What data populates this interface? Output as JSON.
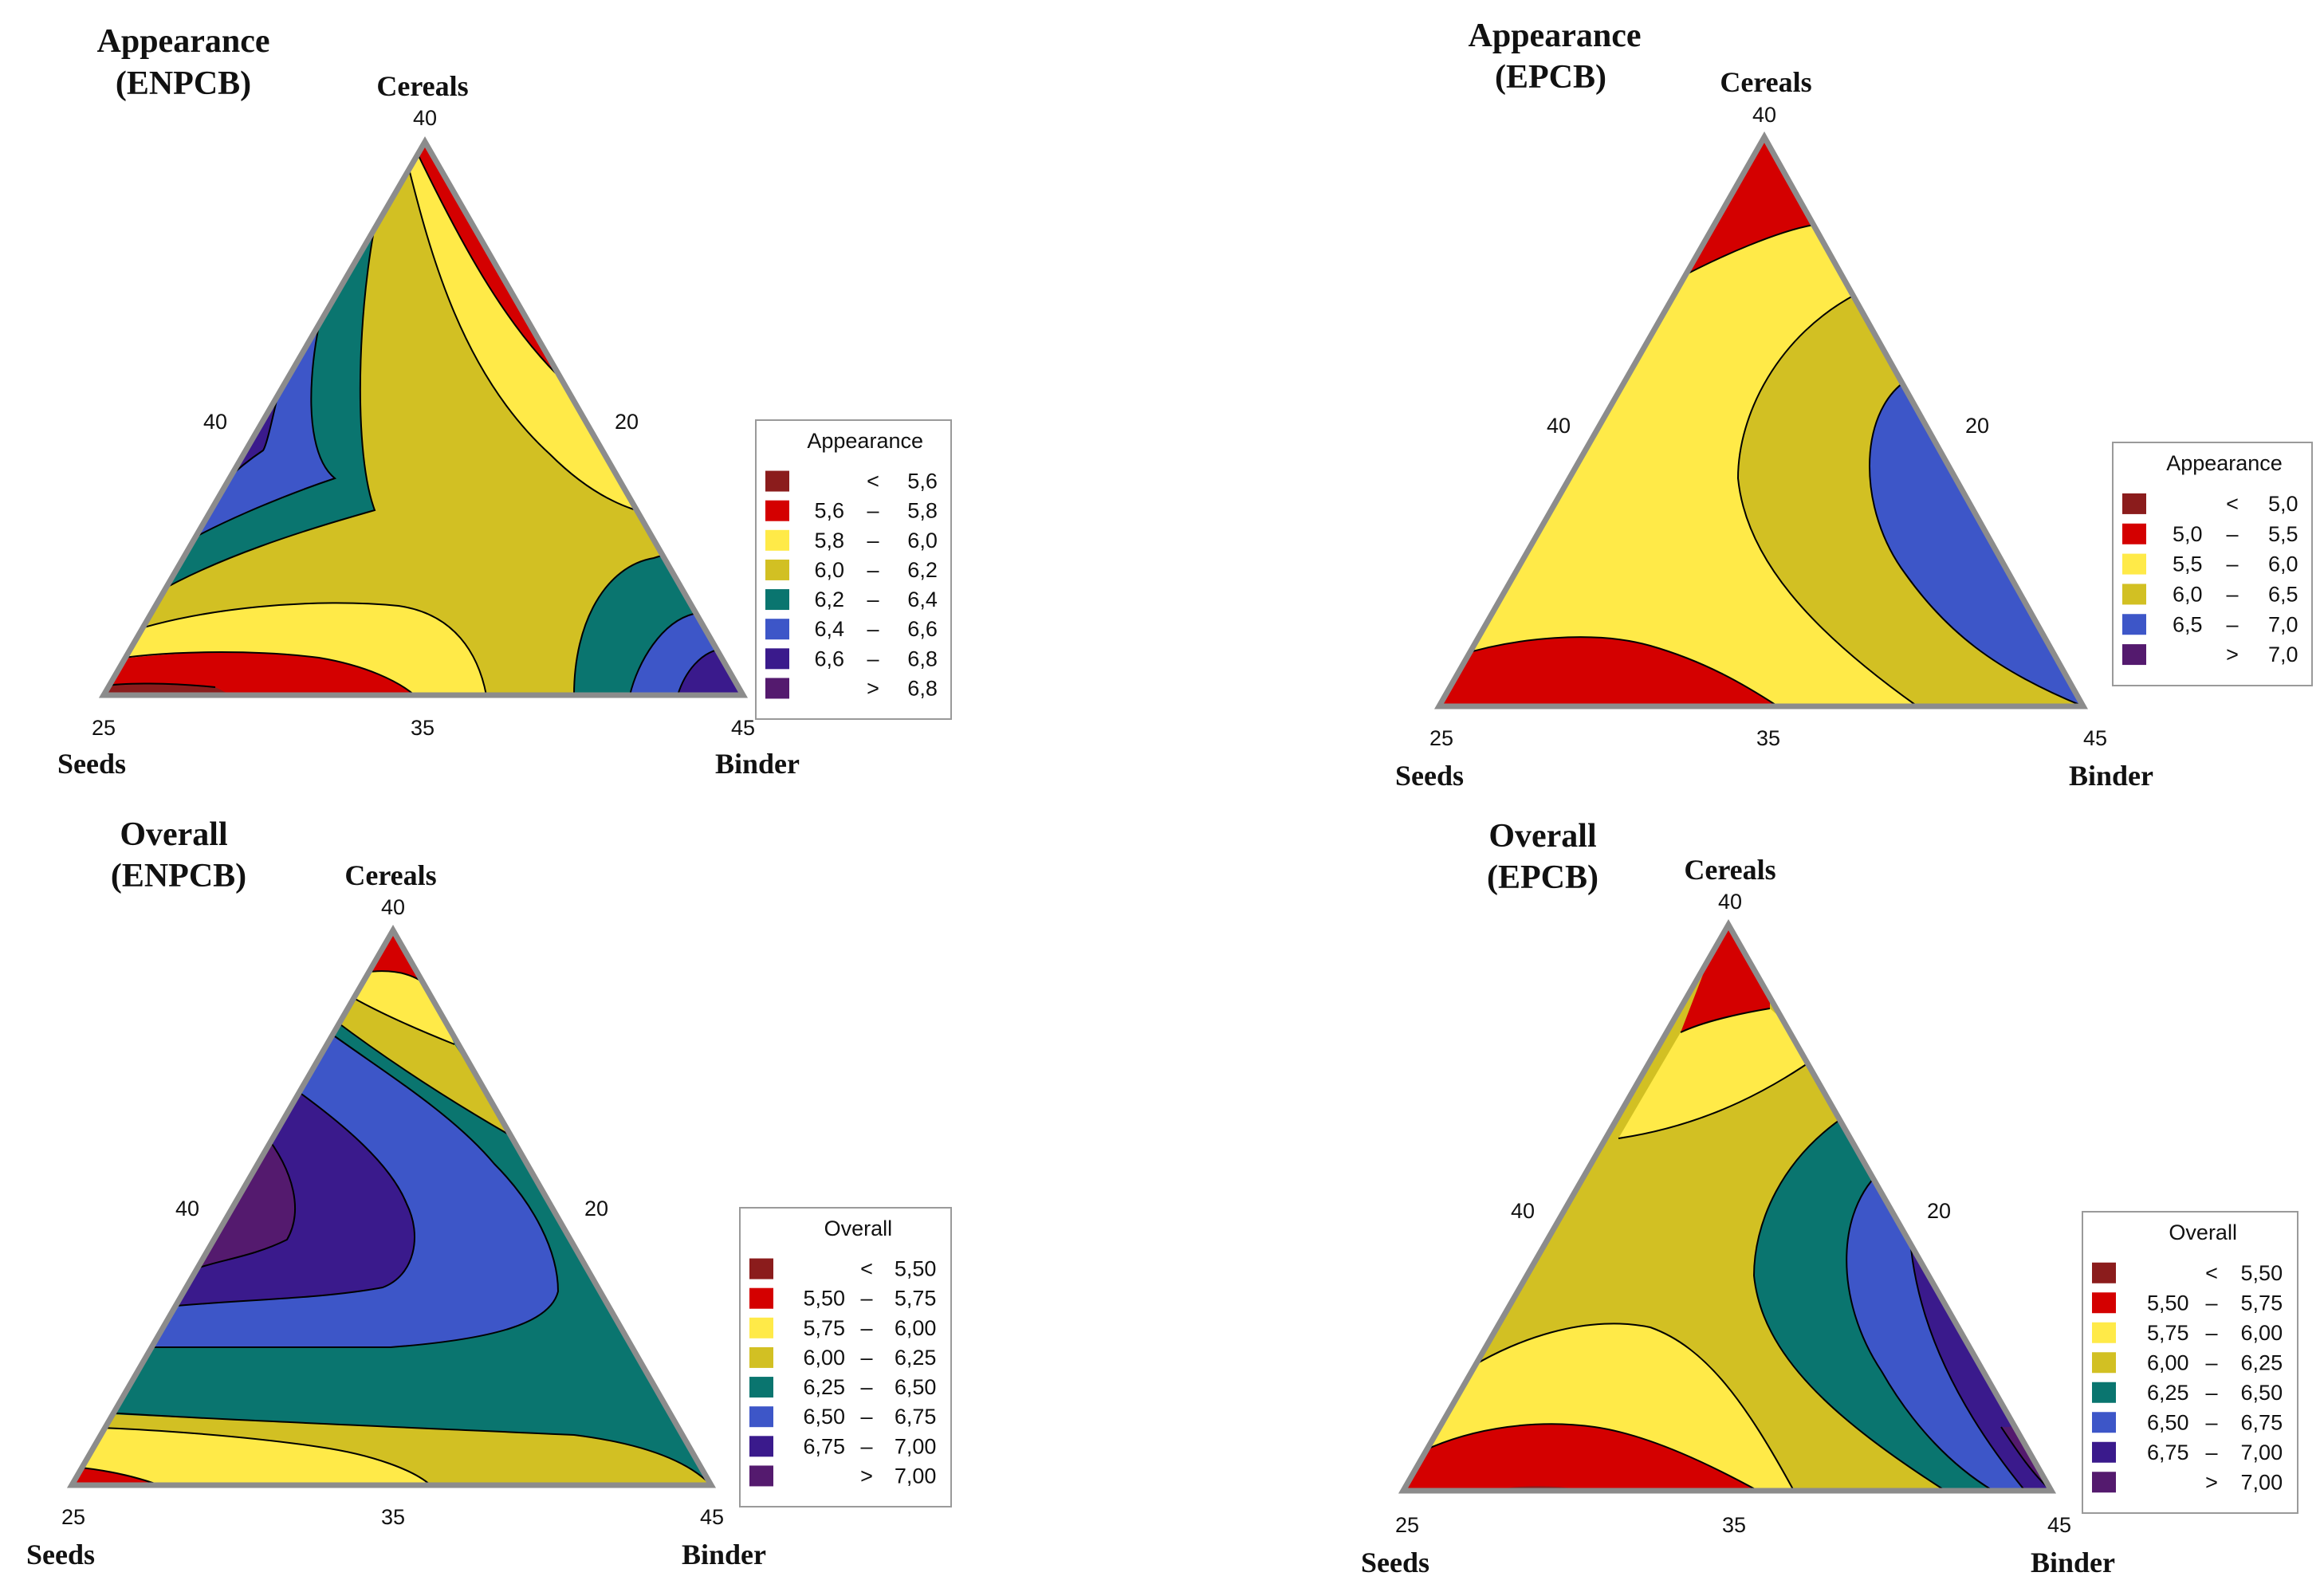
{
  "colors": {
    "dark_red": "#8b1c1c",
    "red": "#d40000",
    "yellow": "#ffea48",
    "olive": "#d2c023",
    "teal": "#0a756f",
    "blue": "#3d56c8",
    "indigo": "#3a1a8c",
    "purple": "#541a6e",
    "border_gray": "#8c8c8c"
  },
  "chart_data": [
    {
      "type": "ternary-contour",
      "title_lines": [
        "Appearance",
        "(ENPCB)"
      ],
      "vertices": {
        "top": "Cereals",
        "left": "Seeds",
        "right": "Binder"
      },
      "ticks": {
        "top": "40",
        "left_edge": "40",
        "right_edge": "20",
        "bottom_left": "25",
        "bottom_mid": "35",
        "bottom_right": "45"
      },
      "legend": {
        "title": "Appearance",
        "placement": "right",
        "entries": [
          {
            "op": "<",
            "low": "",
            "high": "5,6",
            "color": "dark_red"
          },
          {
            "op": "–",
            "low": "5,6",
            "high": "5,8",
            "color": "red"
          },
          {
            "op": "–",
            "low": "5,8",
            "high": "6,0",
            "color": "yellow"
          },
          {
            "op": "–",
            "low": "6,0",
            "high": "6,2",
            "color": "olive"
          },
          {
            "op": "–",
            "low": "6,2",
            "high": "6,4",
            "color": "teal"
          },
          {
            "op": "–",
            "low": "6,4",
            "high": "6,6",
            "color": "blue"
          },
          {
            "op": "–",
            "low": "6,6",
            "high": "6,8",
            "color": "indigo"
          },
          {
            "op": ">",
            "low": "",
            "high": "6,8",
            "color": "purple"
          }
        ]
      }
    },
    {
      "type": "ternary-contour",
      "title_lines": [
        "Appearance",
        "(EPCB)"
      ],
      "vertices": {
        "top": "Cereals",
        "left": "Seeds",
        "right": "Binder"
      },
      "ticks": {
        "top": "40",
        "left_edge": "40",
        "right_edge": "20",
        "bottom_left": "25",
        "bottom_mid": "35",
        "bottom_right": "45"
      },
      "legend": {
        "title": "Appearance",
        "placement": "right",
        "entries": [
          {
            "op": "<",
            "low": "",
            "high": "5,0",
            "color": "dark_red"
          },
          {
            "op": "–",
            "low": "5,0",
            "high": "5,5",
            "color": "red"
          },
          {
            "op": "–",
            "low": "5,5",
            "high": "6,0",
            "color": "yellow"
          },
          {
            "op": "–",
            "low": "6,0",
            "high": "6,5",
            "color": "olive"
          },
          {
            "op": "–",
            "low": "6,5",
            "high": "7,0",
            "color": "blue"
          },
          {
            "op": ">",
            "low": "",
            "high": "7,0",
            "color": "purple"
          }
        ]
      }
    },
    {
      "type": "ternary-contour",
      "title_lines": [
        "Overall",
        "(ENPCB)"
      ],
      "vertices": {
        "top": "Cereals",
        "left": "Seeds",
        "right": "Binder"
      },
      "ticks": {
        "top": "40",
        "left_edge": "40",
        "right_edge": "20",
        "bottom_left": "25",
        "bottom_mid": "35",
        "bottom_right": "45"
      },
      "legend": {
        "title": "Overall",
        "placement": "right",
        "entries": [
          {
            "op": "<",
            "low": "",
            "high": "5,50",
            "color": "dark_red"
          },
          {
            "op": "–",
            "low": "5,50",
            "high": "5,75",
            "color": "red"
          },
          {
            "op": "–",
            "low": "5,75",
            "high": "6,00",
            "color": "yellow"
          },
          {
            "op": "–",
            "low": "6,00",
            "high": "6,25",
            "color": "olive"
          },
          {
            "op": "–",
            "low": "6,25",
            "high": "6,50",
            "color": "teal"
          },
          {
            "op": "–",
            "low": "6,50",
            "high": "6,75",
            "color": "blue"
          },
          {
            "op": "–",
            "low": "6,75",
            "high": "7,00",
            "color": "indigo"
          },
          {
            "op": ">",
            "low": "",
            "high": "7,00",
            "color": "purple"
          }
        ]
      }
    },
    {
      "type": "ternary-contour",
      "title_lines": [
        "Overall",
        "(EPCB)"
      ],
      "vertices": {
        "top": "Cereals",
        "left": "Seeds",
        "right": "Binder"
      },
      "ticks": {
        "top": "40",
        "left_edge": "40",
        "right_edge": "20",
        "bottom_left": "25",
        "bottom_mid": "35",
        "bottom_right": "45"
      },
      "legend": {
        "title": "Overall",
        "placement": "right",
        "entries": [
          {
            "op": "<",
            "low": "",
            "high": "5,50",
            "color": "dark_red"
          },
          {
            "op": "–",
            "low": "5,50",
            "high": "5,75",
            "color": "red"
          },
          {
            "op": "–",
            "low": "5,75",
            "high": "6,00",
            "color": "yellow"
          },
          {
            "op": "–",
            "low": "6,00",
            "high": "6,25",
            "color": "olive"
          },
          {
            "op": "–",
            "low": "6,25",
            "high": "6,50",
            "color": "teal"
          },
          {
            "op": "–",
            "low": "6,50",
            "high": "6,75",
            "color": "blue"
          },
          {
            "op": "–",
            "low": "6,75",
            "high": "7,00",
            "color": "indigo"
          },
          {
            "op": ">",
            "low": "",
            "high": "7,00",
            "color": "purple"
          }
        ]
      }
    }
  ]
}
